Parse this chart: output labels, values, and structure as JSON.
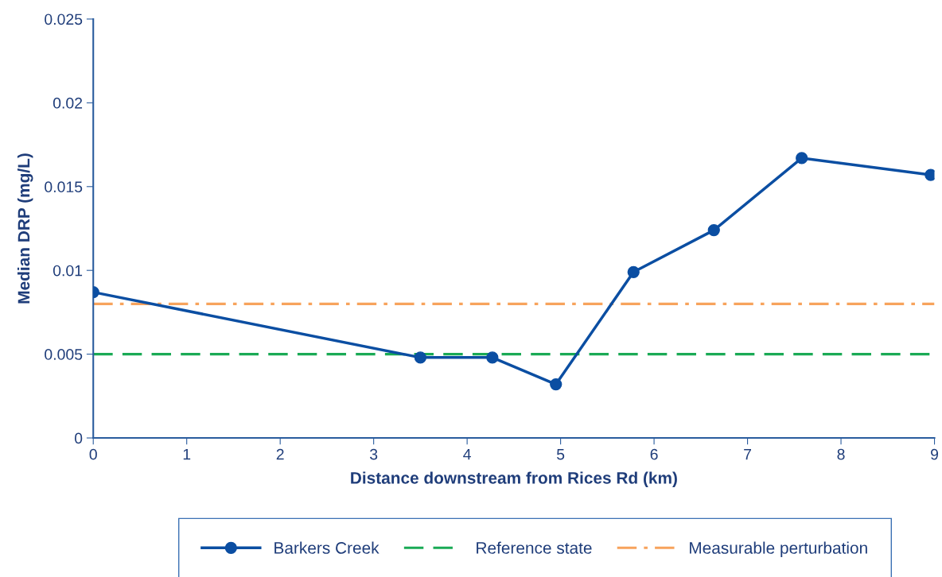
{
  "chart_data": {
    "type": "line",
    "xlabel": "Distance downstream from Rices Rd (km)",
    "ylabel": "Median DRP (mg/L)",
    "series": [
      {
        "name": "Barkers Creek",
        "color": "#0b4ea2",
        "x": [
          0,
          3.5,
          4.27,
          4.95,
          5.78,
          6.64,
          7.58,
          8.96
        ],
        "values": [
          0.0087,
          0.0048,
          0.0048,
          0.0032,
          0.0099,
          0.0124,
          0.0167,
          0.0157
        ]
      }
    ],
    "ref_lines": [
      {
        "axis": "y",
        "value": 0.005,
        "label": "Reference state",
        "color": "#1aaa55",
        "line_style": "dashed"
      },
      {
        "axis": "y",
        "value": 0.008,
        "label": "Measurable perturbation",
        "color": "#f7a35c",
        "line_style": "dashdot"
      }
    ],
    "marker": "circle",
    "line_style": "solid",
    "xlim": [
      0,
      9
    ],
    "xticks": [
      0,
      1,
      2,
      3,
      4,
      5,
      6,
      7,
      8,
      9
    ],
    "ylim": [
      0,
      0.025
    ],
    "yticks": [
      0,
      0.005,
      0.01,
      0.015,
      0.02,
      0.025
    ],
    "grid": false,
    "legend": "bottom"
  }
}
